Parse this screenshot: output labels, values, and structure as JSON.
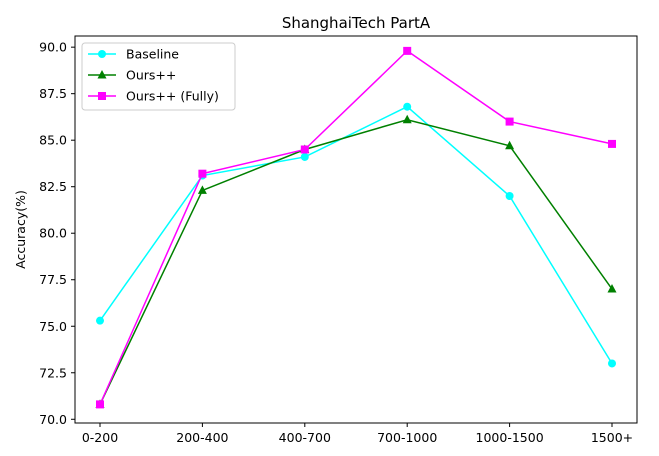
{
  "chart_data": {
    "type": "line",
    "title": "ShanghaiTech PartA",
    "xlabel": "",
    "ylabel": "Accuracy(%)",
    "categories": [
      "0-200",
      "200-400",
      "400-700",
      "700-1000",
      "1000-1500",
      "1500+"
    ],
    "ylim": [
      69.8,
      90.6
    ],
    "yticks": [
      70.0,
      72.5,
      75.0,
      77.5,
      80.0,
      82.5,
      85.0,
      87.5,
      90.0
    ],
    "ytick_labels": [
      "70.0",
      "72.5",
      "75.0",
      "77.5",
      "80.0",
      "82.5",
      "85.0",
      "87.5",
      "90.0"
    ],
    "grid": false,
    "legend_position": "top-left",
    "series": [
      {
        "name": "Baseline",
        "values": [
          75.3,
          83.1,
          84.1,
          86.8,
          82.0,
          73.0
        ],
        "color": "#00ffff",
        "marker": "circle"
      },
      {
        "name": "Ours++",
        "values": [
          70.8,
          82.3,
          84.5,
          86.1,
          84.7,
          77.0
        ],
        "color": "#008000",
        "marker": "triangle"
      },
      {
        "name": "Ours++ (Fully)",
        "values": [
          70.8,
          83.2,
          84.5,
          89.8,
          86.0,
          84.8
        ],
        "color": "#ff00ff",
        "marker": "square"
      }
    ]
  }
}
